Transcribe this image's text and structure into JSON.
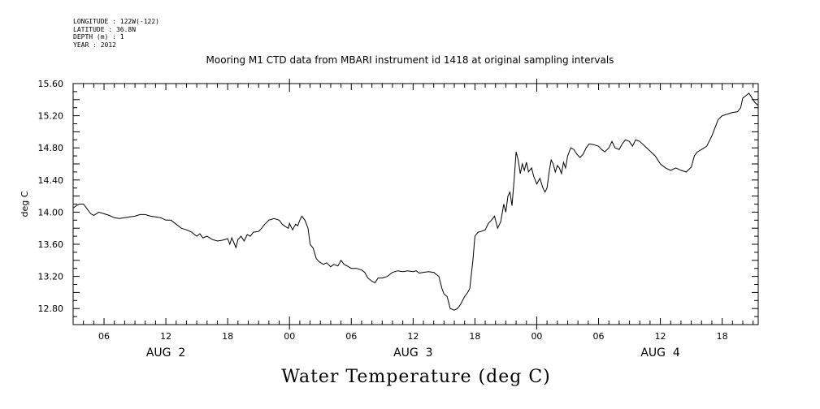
{
  "meta": {
    "longitude": "LONGITUDE : 122W(-122)",
    "latitude": "LATITUDE : 36.8N",
    "depth": "DEPTH (m) : 1",
    "year": "YEAR : 2012"
  },
  "title": "Mooring M1 CTD data from MBARI instrument id 1418 at original sampling intervals",
  "bottom_title": "Water Temperature (deg C)",
  "chart_data": {
    "type": "line",
    "title": "Mooring M1 CTD data from MBARI instrument id 1418 at original sampling intervals",
    "xlabel": "",
    "ylabel": "deg C",
    "ylim": [
      12.6,
      15.6
    ],
    "xlim_hours": [
      3,
      69.5
    ],
    "x_unit": "hours from AUG 2 00:00, 2012",
    "yticks": [
      "12.80",
      "13.20",
      "13.60",
      "14.00",
      "14.40",
      "14.80",
      "15.20",
      "15.60"
    ],
    "xticks": [
      {
        "h": 6,
        "label": "06"
      },
      {
        "h": 12,
        "label": "12"
      },
      {
        "h": 18,
        "label": "18"
      },
      {
        "h": 24,
        "label": "00"
      },
      {
        "h": 30,
        "label": "06"
      },
      {
        "h": 36,
        "label": "12"
      },
      {
        "h": 42,
        "label": "18"
      },
      {
        "h": 48,
        "label": "00"
      },
      {
        "h": 54,
        "label": "06"
      },
      {
        "h": 60,
        "label": "12"
      },
      {
        "h": 66,
        "label": "18"
      }
    ],
    "day_labels": [
      {
        "h": 12,
        "label": "AUG  2"
      },
      {
        "h": 36,
        "label": "AUG  3"
      },
      {
        "h": 60,
        "label": "AUG  4"
      }
    ],
    "series": [
      {
        "values": [
          [
            3.0,
            14.05
          ],
          [
            3.3,
            14.08
          ],
          [
            3.6,
            14.1
          ],
          [
            4.0,
            14.1
          ],
          [
            4.3,
            14.05
          ],
          [
            4.7,
            13.98
          ],
          [
            5.0,
            13.96
          ],
          [
            5.5,
            14.0
          ],
          [
            6.0,
            13.98
          ],
          [
            6.5,
            13.96
          ],
          [
            7.0,
            13.93
          ],
          [
            7.5,
            13.92
          ],
          [
            8.0,
            13.93
          ],
          [
            8.5,
            13.94
          ],
          [
            9.0,
            13.95
          ],
          [
            9.5,
            13.97
          ],
          [
            10.0,
            13.97
          ],
          [
            10.5,
            13.95
          ],
          [
            11.0,
            13.94
          ],
          [
            11.5,
            13.93
          ],
          [
            12.0,
            13.9
          ],
          [
            12.5,
            13.9
          ],
          [
            13.0,
            13.85
          ],
          [
            13.5,
            13.8
          ],
          [
            14.0,
            13.78
          ],
          [
            14.5,
            13.75
          ],
          [
            15.0,
            13.7
          ],
          [
            15.3,
            13.73
          ],
          [
            15.6,
            13.68
          ],
          [
            16.0,
            13.7
          ],
          [
            16.5,
            13.66
          ],
          [
            17.0,
            13.64
          ],
          [
            17.5,
            13.65
          ],
          [
            18.0,
            13.67
          ],
          [
            18.2,
            13.6
          ],
          [
            18.4,
            13.68
          ],
          [
            18.6,
            13.62
          ],
          [
            18.8,
            13.56
          ],
          [
            19.0,
            13.66
          ],
          [
            19.3,
            13.7
          ],
          [
            19.6,
            13.64
          ],
          [
            19.9,
            13.72
          ],
          [
            20.2,
            13.7
          ],
          [
            20.5,
            13.75
          ],
          [
            21.0,
            13.76
          ],
          [
            21.3,
            13.8
          ],
          [
            21.6,
            13.85
          ],
          [
            22.0,
            13.9
          ],
          [
            22.5,
            13.92
          ],
          [
            23.0,
            13.9
          ],
          [
            23.3,
            13.85
          ],
          [
            23.6,
            13.82
          ],
          [
            23.9,
            13.8
          ],
          [
            24.0,
            13.86
          ],
          [
            24.3,
            13.78
          ],
          [
            24.6,
            13.85
          ],
          [
            24.8,
            13.83
          ],
          [
            25.0,
            13.9
          ],
          [
            25.2,
            13.95
          ],
          [
            25.5,
            13.9
          ],
          [
            25.8,
            13.8
          ],
          [
            26.0,
            13.6
          ],
          [
            26.3,
            13.55
          ],
          [
            26.6,
            13.42
          ],
          [
            26.9,
            13.38
          ],
          [
            27.3,
            13.35
          ],
          [
            27.6,
            13.37
          ],
          [
            28.0,
            13.32
          ],
          [
            28.3,
            13.35
          ],
          [
            28.7,
            13.33
          ],
          [
            29.0,
            13.4
          ],
          [
            29.3,
            13.35
          ],
          [
            29.6,
            13.33
          ],
          [
            30.0,
            13.3
          ],
          [
            30.5,
            13.3
          ],
          [
            31.0,
            13.28
          ],
          [
            31.3,
            13.25
          ],
          [
            31.6,
            13.18
          ],
          [
            32.0,
            13.14
          ],
          [
            32.3,
            13.12
          ],
          [
            32.6,
            13.18
          ],
          [
            33.0,
            13.18
          ],
          [
            33.5,
            13.2
          ],
          [
            34.0,
            13.25
          ],
          [
            34.5,
            13.27
          ],
          [
            35.0,
            13.26
          ],
          [
            35.5,
            13.27
          ],
          [
            36.0,
            13.26
          ],
          [
            36.3,
            13.27
          ],
          [
            36.6,
            13.24
          ],
          [
            37.0,
            13.25
          ],
          [
            37.5,
            13.26
          ],
          [
            38.0,
            13.25
          ],
          [
            38.5,
            13.2
          ],
          [
            38.8,
            13.05
          ],
          [
            39.0,
            12.98
          ],
          [
            39.3,
            12.95
          ],
          [
            39.6,
            12.8
          ],
          [
            40.0,
            12.78
          ],
          [
            40.3,
            12.8
          ],
          [
            40.6,
            12.85
          ],
          [
            41.0,
            12.95
          ],
          [
            41.3,
            13.0
          ],
          [
            41.5,
            13.05
          ],
          [
            41.8,
            13.4
          ],
          [
            42.0,
            13.7
          ],
          [
            42.3,
            13.75
          ],
          [
            42.6,
            13.76
          ],
          [
            43.0,
            13.78
          ],
          [
            43.3,
            13.86
          ],
          [
            43.6,
            13.9
          ],
          [
            43.9,
            13.95
          ],
          [
            44.2,
            13.8
          ],
          [
            44.5,
            13.88
          ],
          [
            44.8,
            14.1
          ],
          [
            45.0,
            14.0
          ],
          [
            45.2,
            14.2
          ],
          [
            45.4,
            14.25
          ],
          [
            45.6,
            14.08
          ],
          [
            45.8,
            14.4
          ],
          [
            46.0,
            14.75
          ],
          [
            46.2,
            14.65
          ],
          [
            46.4,
            14.48
          ],
          [
            46.6,
            14.6
          ],
          [
            46.8,
            14.52
          ],
          [
            47.0,
            14.62
          ],
          [
            47.2,
            14.5
          ],
          [
            47.5,
            14.55
          ],
          [
            47.7,
            14.45
          ],
          [
            48.0,
            14.35
          ],
          [
            48.3,
            14.42
          ],
          [
            48.6,
            14.3
          ],
          [
            48.8,
            14.25
          ],
          [
            49.0,
            14.3
          ],
          [
            49.2,
            14.5
          ],
          [
            49.4,
            14.65
          ],
          [
            49.6,
            14.6
          ],
          [
            49.8,
            14.5
          ],
          [
            50.0,
            14.58
          ],
          [
            50.2,
            14.55
          ],
          [
            50.4,
            14.48
          ],
          [
            50.6,
            14.62
          ],
          [
            50.8,
            14.55
          ],
          [
            51.0,
            14.7
          ],
          [
            51.3,
            14.8
          ],
          [
            51.6,
            14.78
          ],
          [
            51.9,
            14.72
          ],
          [
            52.2,
            14.68
          ],
          [
            52.5,
            14.72
          ],
          [
            52.8,
            14.8
          ],
          [
            53.1,
            14.85
          ],
          [
            53.5,
            14.84
          ],
          [
            54.0,
            14.82
          ],
          [
            54.3,
            14.78
          ],
          [
            54.6,
            14.75
          ],
          [
            55.0,
            14.8
          ],
          [
            55.3,
            14.88
          ],
          [
            55.6,
            14.8
          ],
          [
            56.0,
            14.78
          ],
          [
            56.3,
            14.85
          ],
          [
            56.6,
            14.9
          ],
          [
            57.0,
            14.88
          ],
          [
            57.3,
            14.82
          ],
          [
            57.6,
            14.9
          ],
          [
            58.0,
            14.88
          ],
          [
            58.5,
            14.82
          ],
          [
            59.0,
            14.76
          ],
          [
            59.5,
            14.7
          ],
          [
            60.0,
            14.6
          ],
          [
            60.5,
            14.55
          ],
          [
            61.0,
            14.52
          ],
          [
            61.5,
            14.55
          ],
          [
            62.0,
            14.52
          ],
          [
            62.5,
            14.5
          ],
          [
            63.0,
            14.56
          ],
          [
            63.3,
            14.7
          ],
          [
            63.6,
            14.75
          ],
          [
            64.0,
            14.78
          ],
          [
            64.5,
            14.82
          ],
          [
            65.0,
            14.95
          ],
          [
            65.3,
            15.05
          ],
          [
            65.6,
            15.15
          ],
          [
            66.0,
            15.2
          ],
          [
            66.5,
            15.22
          ],
          [
            67.0,
            15.24
          ],
          [
            67.5,
            15.25
          ],
          [
            67.8,
            15.3
          ],
          [
            68.0,
            15.42
          ],
          [
            68.3,
            15.45
          ],
          [
            68.6,
            15.48
          ],
          [
            68.9,
            15.42
          ],
          [
            69.2,
            15.36
          ],
          [
            69.5,
            15.33
          ]
        ]
      }
    ],
    "grid": false,
    "legend": "none"
  }
}
